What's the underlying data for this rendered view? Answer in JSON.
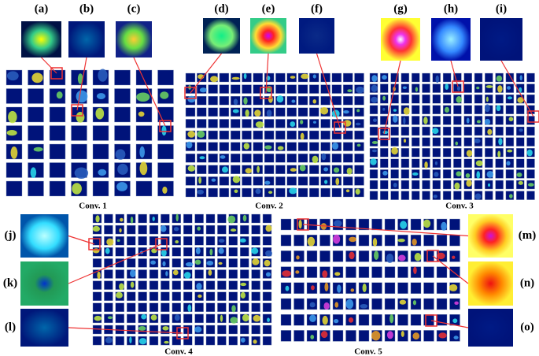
{
  "panels": {
    "a": "(a)",
    "b": "(b)",
    "c": "(c)",
    "d": "(d)",
    "e": "(e)",
    "f": "(f)",
    "g": "(g)",
    "h": "(h)",
    "i": "(i)",
    "j": "(j)",
    "k": "(k)",
    "l": "(l)",
    "m": "(m)",
    "n": "(n)",
    "o": "(o)"
  },
  "layers": [
    "Conv. 1",
    "Conv. 2",
    "Conv. 3",
    "Conv. 4",
    "Conv. 5"
  ]
}
